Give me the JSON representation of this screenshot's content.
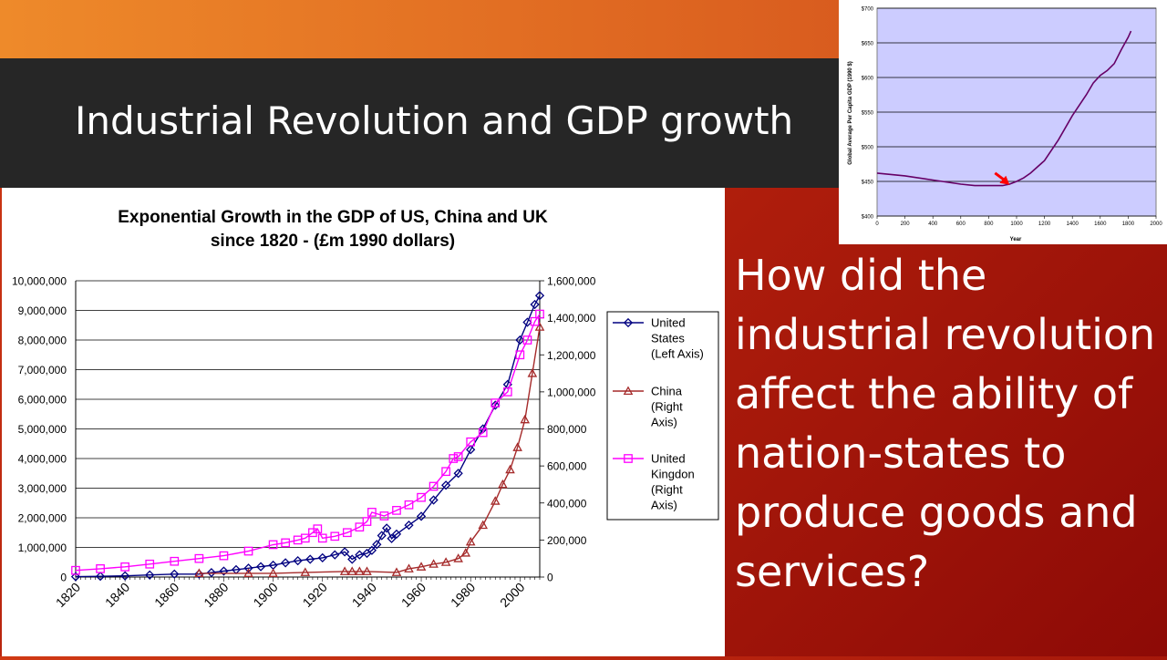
{
  "slide": {
    "title": "Industrial Revolution and GDP growth",
    "question": "How did the industrial revolution affect the ability of nation-states to produce goods and services?",
    "colors": {
      "title_bar": "#262626",
      "background": "#b3200d",
      "accent_band": "#e06a22",
      "text": "#ffffff"
    }
  },
  "chart_data": [
    {
      "type": "line",
      "title": "Exponential Growth in the GDP of US, China and UK",
      "subtitle": "since 1820 - (£m 1990 dollars)",
      "xlabel": "",
      "ylabel_left": "",
      "ylabel_right": "",
      "x_ticks": [
        "1820",
        "1840",
        "1860",
        "1880",
        "1900",
        "1920",
        "1940",
        "1960",
        "1980",
        "2000"
      ],
      "xlim": [
        1820,
        2008
      ],
      "y_left_ticks": [
        "0",
        "1,000,000",
        "2,000,000",
        "3,000,000",
        "4,000,000",
        "5,000,000",
        "6,000,000",
        "7,000,000",
        "8,000,000",
        "9,000,000",
        "10,000,000"
      ],
      "ylim_left": [
        0,
        10000000
      ],
      "y_right_ticks": [
        "0",
        "200,000",
        "400,000",
        "600,000",
        "800,000",
        "1,000,000",
        "1,200,000",
        "1,400,000",
        "1,600,000"
      ],
      "ylim_right": [
        0,
        1600000
      ],
      "grid": true,
      "legend_position": "right",
      "series": [
        {
          "name": "United States (Left Axis)",
          "legend_lines": [
            "United",
            "States",
            "(Left Axis)"
          ],
          "axis": "left",
          "color": "#000080",
          "marker": "diamond",
          "x": [
            1820,
            1830,
            1840,
            1850,
            1860,
            1870,
            1875,
            1880,
            1885,
            1890,
            1895,
            1900,
            1905,
            1910,
            1915,
            1920,
            1925,
            1929,
            1932,
            1935,
            1938,
            1940,
            1942,
            1944,
            1946,
            1948,
            1950,
            1955,
            1960,
            1965,
            1970,
            1975,
            1980,
            1985,
            1990,
            1995,
            2000,
            2003,
            2006,
            2008
          ],
          "values": [
            12500,
            25000,
            40000,
            70000,
            100000,
            100000,
            150000,
            200000,
            250000,
            300000,
            350000,
            400000,
            480000,
            550000,
            600000,
            650000,
            750000,
            850000,
            600000,
            750000,
            800000,
            900000,
            1100000,
            1400000,
            1650000,
            1300000,
            1450000,
            1750000,
            2050000,
            2600000,
            3100000,
            3500000,
            4300000,
            5000000,
            5800000,
            6500000,
            8000000,
            8600000,
            9200000,
            9500000
          ]
        },
        {
          "name": "China (Right Axis)",
          "legend_lines": [
            "China",
            "(Right",
            "Axis)"
          ],
          "axis": "right",
          "color": "#a52a2a",
          "marker": "triangle",
          "x": [
            1870,
            1890,
            1900,
            1913,
            1929,
            1932,
            1935,
            1938,
            1950,
            1955,
            1960,
            1965,
            1970,
            1975,
            1978,
            1980,
            1985,
            1990,
            1993,
            1996,
            1999,
            2002,
            2005,
            2008
          ],
          "values": [
            20000,
            20000,
            20000,
            25000,
            30000,
            30000,
            30000,
            30000,
            25000,
            45000,
            55000,
            70000,
            80000,
            100000,
            130000,
            190000,
            280000,
            410000,
            500000,
            580000,
            700000,
            850000,
            1100000,
            1350000
          ]
        },
        {
          "name": "United Kingdon (Right Axis)",
          "legend_lines": [
            "United",
            "Kingdon",
            "(Right",
            "Axis)"
          ],
          "axis": "right",
          "color": "#ff00ff",
          "marker": "square",
          "x": [
            1820,
            1830,
            1840,
            1850,
            1860,
            1870,
            1880,
            1890,
            1900,
            1905,
            1910,
            1913,
            1916,
            1918,
            1920,
            1925,
            1930,
            1935,
            1938,
            1940,
            1945,
            1950,
            1955,
            1960,
            1965,
            1970,
            1973,
            1975,
            1980,
            1985,
            1990,
            1995,
            2000,
            2003,
            2006,
            2008
          ],
          "values": [
            36000,
            45000,
            55000,
            70000,
            85000,
            100000,
            115000,
            140000,
            175000,
            185000,
            200000,
            210000,
            240000,
            260000,
            210000,
            220000,
            240000,
            270000,
            300000,
            350000,
            330000,
            360000,
            390000,
            430000,
            490000,
            570000,
            640000,
            650000,
            730000,
            780000,
            940000,
            1000000,
            1200000,
            1280000,
            1380000,
            1420000
          ]
        }
      ]
    },
    {
      "type": "line",
      "title": "",
      "xlabel": "Year",
      "ylabel": "Global Average Per Capita GDP (1990 $)",
      "x_ticks": [
        "0",
        "200",
        "400",
        "600",
        "800",
        "1000",
        "1200",
        "1400",
        "1600",
        "1800",
        "2000"
      ],
      "xlim": [
        0,
        2000
      ],
      "y_ticks": [
        "$400",
        "$450",
        "$500",
        "$550",
        "$600",
        "$650",
        "$700"
      ],
      "ylim": [
        400,
        700
      ],
      "grid": true,
      "background": "#ccccff",
      "line_color": "#660066",
      "annotation": "red-arrow",
      "annotation_color": "#ff0000",
      "annotation_at": [
        950,
        445
      ],
      "series": [
        {
          "x": [
            0,
            200,
            400,
            600,
            700,
            800,
            900,
            950,
            1000,
            1050,
            1100,
            1200,
            1300,
            1400,
            1500,
            1550,
            1600,
            1650,
            1700,
            1750,
            1800,
            1820
          ],
          "values": [
            462,
            458,
            452,
            446,
            444,
            444,
            444,
            446,
            450,
            455,
            462,
            480,
            510,
            545,
            575,
            592,
            603,
            610,
            620,
            640,
            658,
            667
          ]
        }
      ]
    }
  ]
}
